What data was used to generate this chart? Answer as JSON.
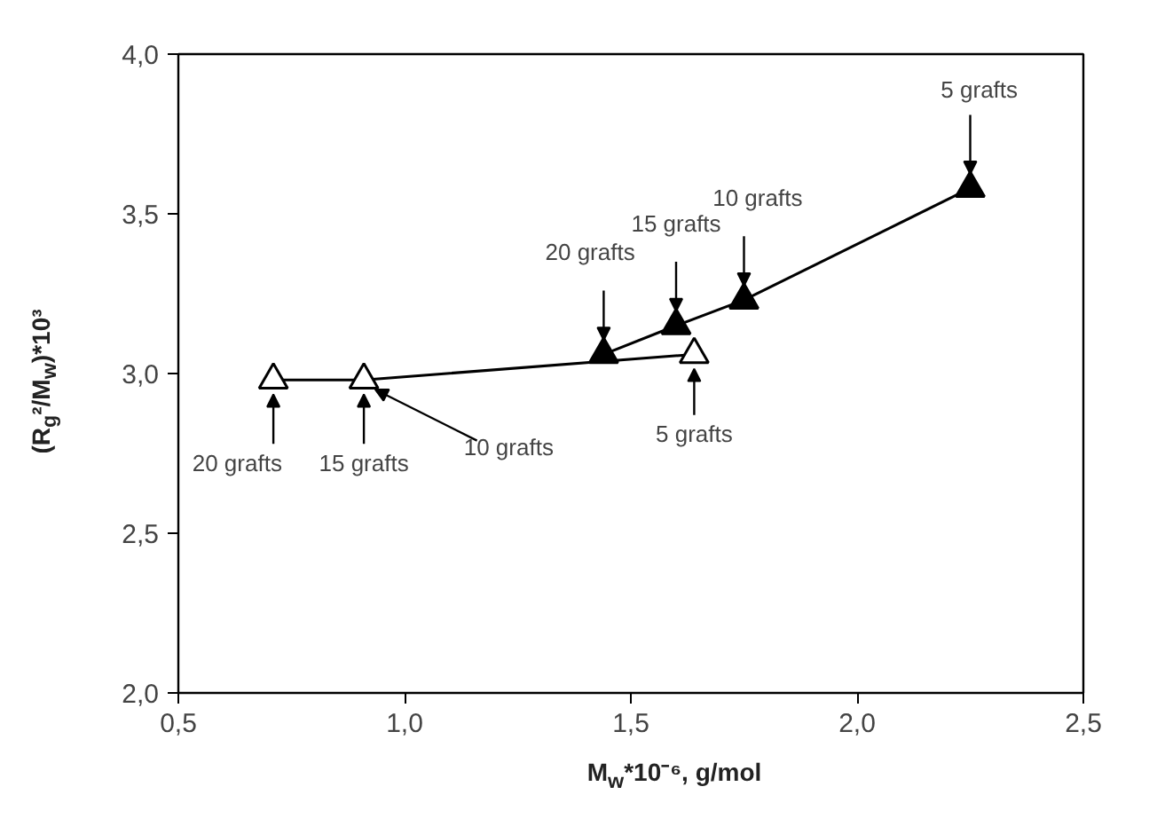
{
  "chart_data": {
    "type": "line",
    "xlabel": "M$_{w}$*10⁻⁶, g/mol",
    "ylabel": "(R$_{g}$²/M$_{w}$)*10³",
    "xlim": [
      0.5,
      2.5
    ],
    "ylim": [
      2.0,
      4.0
    ],
    "xticks": [
      {
        "value": 0.5,
        "label": "0,5"
      },
      {
        "value": 1.0,
        "label": "1,0"
      },
      {
        "value": 1.5,
        "label": "1,5"
      },
      {
        "value": 2.0,
        "label": "2,0"
      },
      {
        "value": 2.5,
        "label": "2,5"
      }
    ],
    "yticks": [
      {
        "value": 2.0,
        "label": "2,0"
      },
      {
        "value": 2.5,
        "label": "2,5"
      },
      {
        "value": 3.0,
        "label": "3,0"
      },
      {
        "value": 3.5,
        "label": "3,5"
      },
      {
        "value": 4.0,
        "label": "4,0"
      }
    ],
    "grid": false,
    "marker": "triangle",
    "line_style": "solid",
    "series": [
      {
        "color": "#000000",
        "x": [
          1.44,
          1.6,
          1.75,
          2.25
        ],
        "values": [
          3.06,
          3.15,
          3.23,
          3.58
        ]
      },
      {
        "color": "#000000",
        "x": [
          0.71,
          0.91,
          1.64
        ],
        "values": [
          2.98,
          2.98,
          3.06
        ]
      }
    ],
    "annotations": [
      {
        "text": "5 grafts",
        "x": 2.25,
        "y": 3.58
      },
      {
        "text": "10 grafts",
        "x": 1.75,
        "y": 3.23
      },
      {
        "text": "15 grafts",
        "x": 1.6,
        "y": 3.15
      },
      {
        "text": "20 grafts",
        "x": 1.44,
        "y": 3.06
      },
      {
        "text": "5 grafts",
        "x": 1.64,
        "y": 3.06
      },
      {
        "text": "10 grafts",
        "x": 0.92,
        "y": 2.98
      },
      {
        "text": "15 grafts",
        "x": 0.91,
        "y": 2.98
      },
      {
        "text": "20 grafts",
        "x": 0.71,
        "y": 2.98
      }
    ]
  }
}
